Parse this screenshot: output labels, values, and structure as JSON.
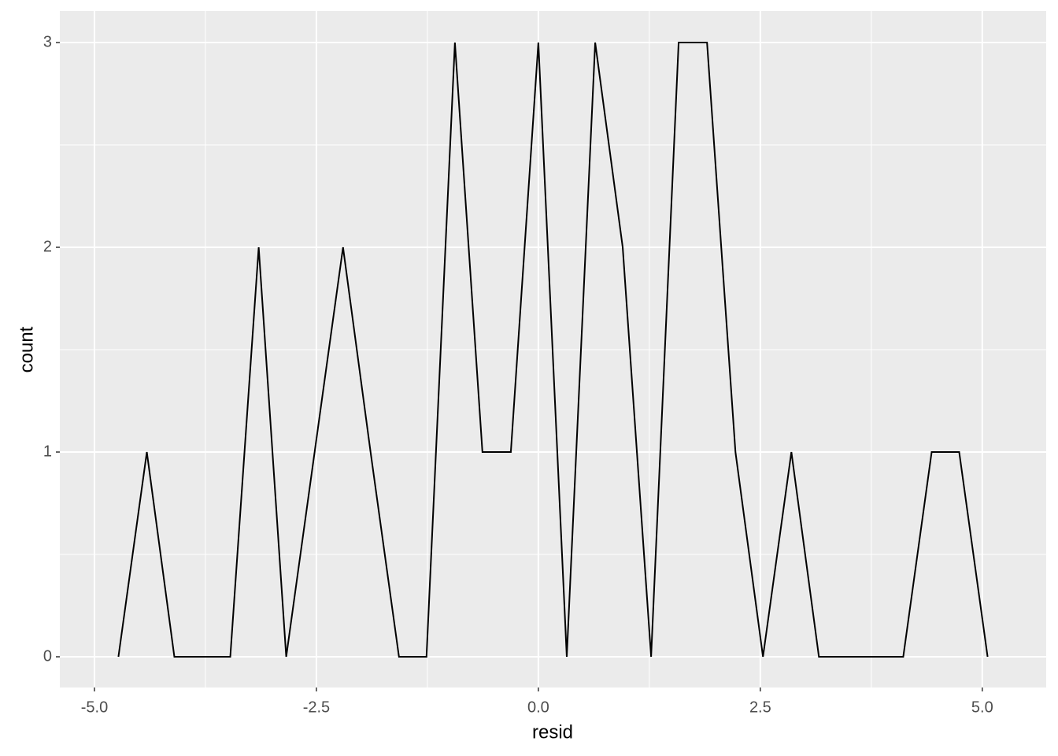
{
  "chart_data": {
    "type": "line",
    "x_label": "resid",
    "y_label": "count",
    "x": [
      -4.73,
      -4.41,
      -4.1,
      -3.78,
      -3.47,
      -3.15,
      -2.84,
      -2.52,
      -2.2,
      -1.89,
      -1.57,
      -1.26,
      -0.94,
      -0.63,
      -0.31,
      0.0,
      0.32,
      0.64,
      0.95,
      1.27,
      1.58,
      1.9,
      2.22,
      2.53,
      2.85,
      3.16,
      3.48,
      3.79,
      4.11,
      4.43,
      4.74,
      5.06
    ],
    "series": [
      {
        "color": "#000000",
        "values": [
          0,
          1,
          0,
          0,
          0,
          2,
          0,
          1,
          2,
          1,
          0,
          0,
          3,
          1,
          1,
          3,
          0,
          3,
          2,
          0,
          3,
          3,
          1,
          0,
          1,
          0,
          0,
          0,
          0,
          1,
          1,
          0
        ]
      }
    ],
    "xlim": [
      -5.39,
      5.72
    ],
    "ylim": [
      -0.15,
      3.154
    ],
    "xticks": [
      {
        "value": -5,
        "label": "-5.0"
      },
      {
        "value": -2.5,
        "label": "-2.5"
      },
      {
        "value": 0,
        "label": "0.0"
      },
      {
        "value": 2.5,
        "label": "2.5"
      },
      {
        "value": 5,
        "label": "5.0"
      }
    ],
    "yticks": [
      0,
      1,
      2,
      3
    ],
    "grid": true,
    "panel_color": "#ebebeb"
  }
}
